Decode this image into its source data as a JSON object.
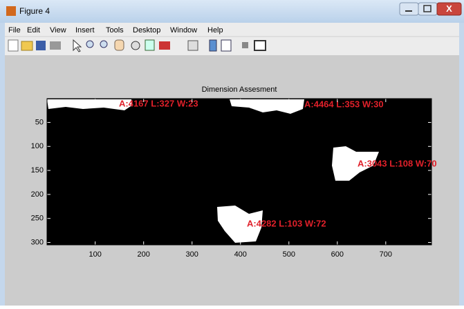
{
  "window": {
    "title": "Figure 4",
    "menu": [
      "File",
      "Edit",
      "View",
      "Insert",
      "Tools",
      "Desktop",
      "Window",
      "Help"
    ]
  },
  "chart_data": {
    "type": "image",
    "title": "Dimension Assesment",
    "xlim": [
      0.5,
      794.5
    ],
    "ylim": [
      0.5,
      305
    ],
    "xticks": [
      100,
      200,
      300,
      400,
      500,
      600,
      700
    ],
    "yticks": [
      50,
      100,
      150,
      200,
      250,
      300
    ],
    "annotations": [
      "A:4167 L:327 W:23",
      "A:4464 L:353 W:30",
      "A:3043 L:108 W:70",
      "A:4282 L:103 W:72"
    ],
    "annotation_color": "#e0202a"
  }
}
